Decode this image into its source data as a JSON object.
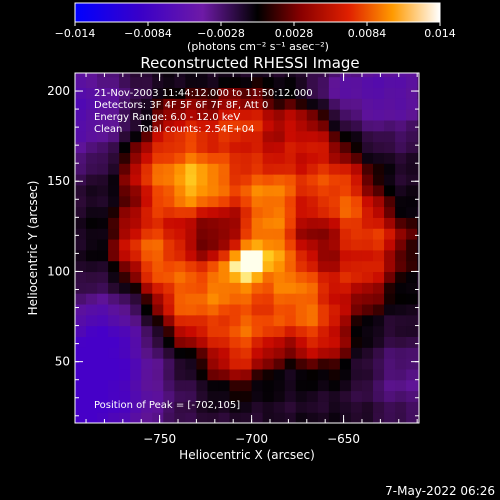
{
  "colorbar": {
    "tick_labels": [
      "−0.014",
      "−0.0084",
      "−0.0028",
      "0.0028",
      "0.0084",
      "0.014"
    ],
    "units_label": "(photons cm⁻² s⁻¹ asec⁻²)"
  },
  "chart_data": {
    "type": "heatmap",
    "title": "Reconstructed RHESSI Image",
    "xlabel": "Heliocentric X (arcsec)",
    "ylabel": "Heliocentric Y (arcsec)",
    "xlim": [
      -796,
      -609
    ],
    "ylim": [
      16,
      210
    ],
    "x_ticks": [
      -750,
      -700,
      -650
    ],
    "x_tick_labels": [
      "−750",
      "−700",
      "−650"
    ],
    "y_ticks": [
      50,
      100,
      150,
      200
    ],
    "y_tick_labels": [
      "50",
      "100",
      "150",
      "200"
    ],
    "color_range": [
      -0.014,
      0.014
    ],
    "peak": [
      -702,
      105
    ],
    "annotations": [
      "21-Nov-2003 11:44:12.000 to 11:50:12.000",
      "Detectors: 3F 4F 5F 6F 7F 8F, Att 0",
      "Energy Range: 6.0 - 12.0 keV",
      "Clean     Total counts: 2.54E+04"
    ],
    "peak_label": "Position of Peak = [-702,105]"
  },
  "footer": {
    "timestamp": "7-May-2022 06:26"
  }
}
